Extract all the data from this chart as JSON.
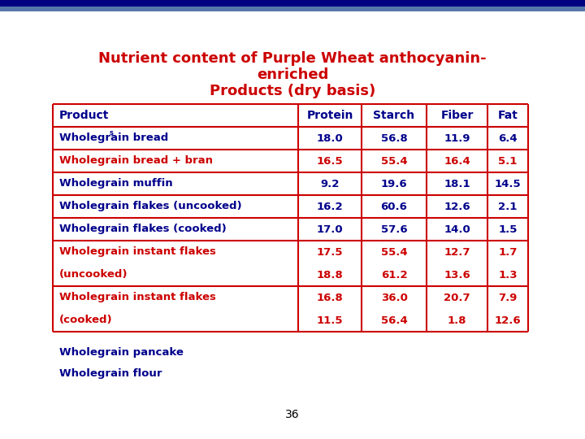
{
  "title_line1": "Nutrient content of Purple Wheat anthocyanin-",
  "title_line2": "enriched",
  "title_line3": "Products (dry basis)",
  "title_color": "#cc0000",
  "header_color": "#00008B",
  "col_headers": [
    "Product",
    "Protein",
    "Starch",
    "Fiber",
    "Fat"
  ],
  "display_rows": [
    {
      "line1": "Wholegrain bread",
      "line2": null,
      "protein1": "18.0",
      "starch1": "56.8",
      "fiber1": "11.9",
      "fat1": "6.4",
      "protein2": null,
      "starch2": null,
      "fiber2": null,
      "fat2": null,
      "color": "#00008B",
      "superscript": true
    },
    {
      "line1": "Wholegrain bread + bran",
      "line2": null,
      "protein1": "16.5",
      "starch1": "55.4",
      "fiber1": "16.4",
      "fat1": "5.1",
      "protein2": null,
      "starch2": null,
      "fiber2": null,
      "fat2": null,
      "color": "#cc0000",
      "superscript": false
    },
    {
      "line1": "Wholegrain muffin",
      "line2": null,
      "protein1": "9.2",
      "starch1": "19.6",
      "fiber1": "18.1",
      "fat1": "14.5",
      "protein2": null,
      "starch2": null,
      "fiber2": null,
      "fat2": null,
      "color": "#00008B",
      "superscript": false
    },
    {
      "line1": "Wholegrain flakes (uncooked)",
      "line2": null,
      "protein1": "16.2",
      "starch1": "60.6",
      "fiber1": "12.6",
      "fat1": "2.1",
      "protein2": null,
      "starch2": null,
      "fiber2": null,
      "fat2": null,
      "color": "#00008B",
      "superscript": false
    },
    {
      "line1": "Wholegrain flakes (cooked)",
      "line2": null,
      "protein1": "17.0",
      "starch1": "57.6",
      "fiber1": "14.0",
      "fat1": "1.5",
      "protein2": null,
      "starch2": null,
      "fiber2": null,
      "fat2": null,
      "color": "#00008B",
      "superscript": false
    },
    {
      "line1": "Wholegrain instant flakes",
      "line2": "(uncooked)",
      "protein1": "17.5",
      "starch1": "55.4",
      "fiber1": "12.7",
      "fat1": "1.7",
      "protein2": "18.8",
      "starch2": "61.2",
      "fiber2": "13.6",
      "fat2": "1.3",
      "color": "#cc0000",
      "superscript": false
    },
    {
      "line1": "Wholegrain instant flakes",
      "line2": "(cooked)",
      "protein1": "16.8",
      "starch1": "36.0",
      "fiber1": "20.7",
      "fat1": "7.9",
      "protein2": "11.5",
      "starch2": "56.4",
      "fiber2": "1.8",
      "fat2": "12.6",
      "color": "#cc0000",
      "superscript": false
    }
  ],
  "extra_rows": [
    {
      "product": "Wholegrain pancake",
      "color": "#00008B"
    },
    {
      "product": "Wholegrain flour",
      "color": "#00008B"
    }
  ],
  "page_num": "36",
  "bg_color": "#ffffff",
  "border_color": "#cc0000",
  "top_bar_dark": "#000080",
  "top_bar_light": "#5577aa"
}
